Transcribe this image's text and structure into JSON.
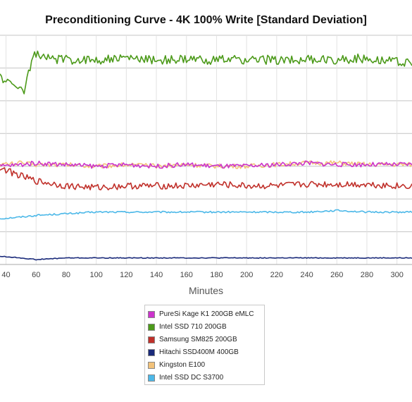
{
  "chart_data": {
    "type": "line",
    "title": "Preconditioning Curve - 4K 100% Write [Standard Deviation]",
    "xlabel": "Minutes",
    "ylabel": "",
    "x_ticks": [
      "40",
      "60",
      "80",
      "100",
      "120",
      "140",
      "160",
      "180",
      "200",
      "220",
      "240",
      "260",
      "280",
      "300"
    ],
    "xlim": [
      36,
      310
    ],
    "ylim": [
      0,
      7
    ],
    "grid": true,
    "legend_position": "bottom-center",
    "series": [
      {
        "name": "PureSi Kage K1 200GB eMLC",
        "color": "#cc33cc",
        "points": [
          [
            36,
            3.0
          ],
          [
            50,
            3.05
          ],
          [
            60,
            3.1
          ],
          [
            80,
            3.05
          ],
          [
            100,
            3.0
          ],
          [
            120,
            3.05
          ],
          [
            140,
            3.0
          ],
          [
            160,
            3.05
          ],
          [
            180,
            3.0
          ],
          [
            200,
            3.0
          ],
          [
            220,
            3.05
          ],
          [
            240,
            3.1
          ],
          [
            260,
            3.05
          ],
          [
            280,
            3.05
          ],
          [
            300,
            3.05
          ],
          [
            310,
            3.05
          ]
        ]
      },
      {
        "name": "Intel SSD 710 200GB",
        "color": "#4c9a1a",
        "points": [
          [
            36,
            5.75
          ],
          [
            40,
            5.6
          ],
          [
            44,
            5.45
          ],
          [
            48,
            5.5
          ],
          [
            52,
            5.25
          ],
          [
            55,
            5.9
          ],
          [
            58,
            6.3
          ],
          [
            60,
            6.45
          ],
          [
            65,
            6.3
          ],
          [
            80,
            6.25
          ],
          [
            100,
            6.25
          ],
          [
            120,
            6.3
          ],
          [
            140,
            6.25
          ],
          [
            160,
            6.25
          ],
          [
            180,
            6.25
          ],
          [
            200,
            6.25
          ],
          [
            220,
            6.25
          ],
          [
            240,
            6.25
          ],
          [
            260,
            6.25
          ],
          [
            280,
            6.3
          ],
          [
            300,
            6.2
          ],
          [
            310,
            6.15
          ]
        ]
      },
      {
        "name": "Samsung SM825 200GB",
        "color": "#c0302a",
        "points": [
          [
            36,
            2.95
          ],
          [
            50,
            2.7
          ],
          [
            60,
            2.55
          ],
          [
            80,
            2.4
          ],
          [
            100,
            2.35
          ],
          [
            120,
            2.4
          ],
          [
            140,
            2.4
          ],
          [
            160,
            2.4
          ],
          [
            180,
            2.45
          ],
          [
            200,
            2.4
          ],
          [
            220,
            2.4
          ],
          [
            240,
            2.45
          ],
          [
            260,
            2.45
          ],
          [
            280,
            2.45
          ],
          [
            300,
            2.4
          ],
          [
            310,
            2.4
          ]
        ]
      },
      {
        "name": "Hitachi SSD400M 400GB",
        "color": "#1a2a7a",
        "points": [
          [
            36,
            0.25
          ],
          [
            50,
            0.2
          ],
          [
            60,
            0.15
          ],
          [
            80,
            0.2
          ],
          [
            100,
            0.2
          ],
          [
            120,
            0.2
          ],
          [
            140,
            0.2
          ],
          [
            160,
            0.2
          ],
          [
            180,
            0.2
          ],
          [
            200,
            0.2
          ],
          [
            220,
            0.2
          ],
          [
            240,
            0.2
          ],
          [
            260,
            0.2
          ],
          [
            280,
            0.2
          ],
          [
            300,
            0.2
          ],
          [
            310,
            0.2
          ]
        ]
      },
      {
        "name": "Kingston E100",
        "color": "#f2c27a",
        "points": [
          [
            36,
            3.05
          ],
          [
            50,
            3.1
          ],
          [
            60,
            3.05
          ],
          [
            80,
            3.05
          ],
          [
            100,
            3.0
          ],
          [
            120,
            3.05
          ],
          [
            140,
            3.0
          ],
          [
            160,
            3.05
          ],
          [
            180,
            3.0
          ],
          [
            200,
            3.0
          ],
          [
            220,
            3.05
          ],
          [
            240,
            3.1
          ],
          [
            260,
            3.1
          ],
          [
            280,
            3.05
          ],
          [
            300,
            3.05
          ],
          [
            310,
            3.05
          ]
        ]
      },
      {
        "name": "Intel SSD DC S3700",
        "color": "#4cb8e8",
        "points": [
          [
            36,
            1.4
          ],
          [
            50,
            1.45
          ],
          [
            60,
            1.5
          ],
          [
            80,
            1.55
          ],
          [
            100,
            1.6
          ],
          [
            120,
            1.6
          ],
          [
            140,
            1.6
          ],
          [
            160,
            1.6
          ],
          [
            180,
            1.6
          ],
          [
            200,
            1.6
          ],
          [
            220,
            1.6
          ],
          [
            240,
            1.6
          ],
          [
            260,
            1.65
          ],
          [
            280,
            1.6
          ],
          [
            300,
            1.6
          ],
          [
            310,
            1.6
          ]
        ]
      }
    ]
  }
}
